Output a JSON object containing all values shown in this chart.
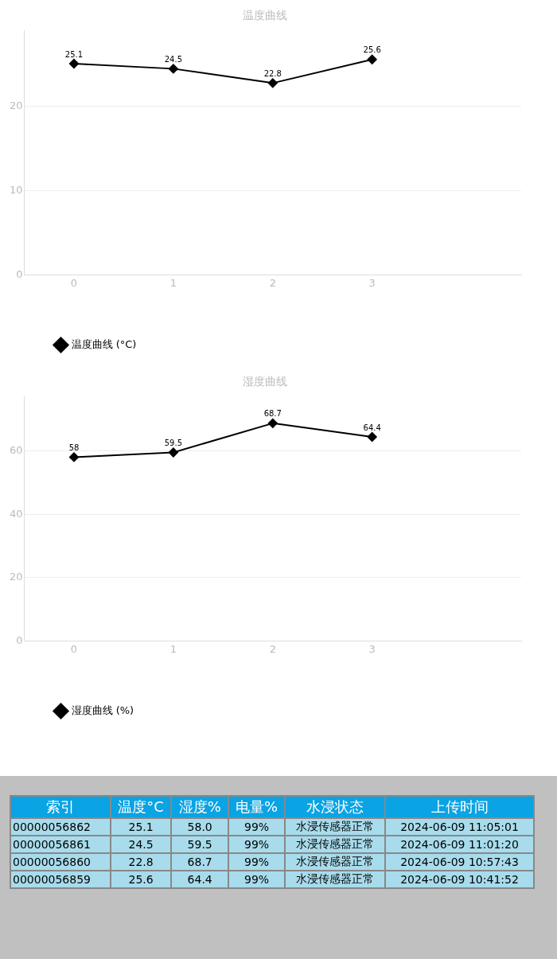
{
  "chart_data": [
    {
      "type": "line",
      "title": "温度曲线",
      "x": [
        0,
        1,
        2,
        3
      ],
      "xlim": [
        -0.5,
        4.5
      ],
      "xticks": [
        0,
        1,
        2,
        3
      ],
      "ylim": [
        0,
        29
      ],
      "yticks": [
        0,
        10,
        20
      ],
      "grid": "y",
      "legend": "bottom left",
      "marker": "diamond",
      "line_style": "solid",
      "data_labels": true,
      "series": [
        {
          "name": "温度曲线 (°C)",
          "color": "#000000",
          "values": [
            25.1,
            24.5,
            22.8,
            25.6
          ]
        }
      ]
    },
    {
      "type": "line",
      "title": "湿度曲线",
      "x": [
        0,
        1,
        2,
        3
      ],
      "xlim": [
        -0.5,
        4.5
      ],
      "xticks": [
        0,
        1,
        2,
        3
      ],
      "ylim": [
        0,
        77
      ],
      "yticks": [
        0,
        20,
        40,
        60
      ],
      "grid": "y",
      "legend": "bottom left",
      "marker": "diamond",
      "line_style": "solid",
      "data_labels": true,
      "series": [
        {
          "name": "湿度曲线 (%)",
          "color": "#000000",
          "values": [
            58.0,
            59.5,
            68.7,
            64.4
          ]
        }
      ]
    },
    {
      "type": "other",
      "categories": [
        "索引",
        "温度°C",
        "湿度%",
        "电量%",
        "水浸状态",
        "上传时间"
      ],
      "cell_labels": [
        [
          "00000056862",
          "25.1",
          "58.0",
          "99%",
          "水浸传感器正常",
          "2024-06-09 11:05:01"
        ],
        [
          "00000056861",
          "24.5",
          "59.5",
          "99%",
          "水浸传感器正常",
          "2024-06-09 11:01:20"
        ],
        [
          "00000056860",
          "22.8",
          "68.7",
          "99%",
          "水浸传感器正常",
          "2024-06-09 10:57:43"
        ],
        [
          "00000056859",
          "25.6",
          "64.4",
          "99%",
          "水浸传感器正常",
          "2024-06-09 10:41:52"
        ]
      ]
    }
  ]
}
